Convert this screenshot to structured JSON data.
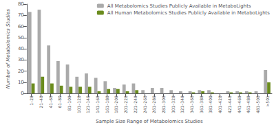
{
  "chart_data": {
    "type": "bar",
    "categories": [
      "1–20",
      "21–40",
      "41–60",
      "61–80",
      "81–100",
      "101–120",
      "121–140",
      "141–160",
      "161–180",
      "181–200",
      "201–220",
      "221–240",
      "241–260",
      "261–280",
      "281–300",
      "301–320",
      "321–340",
      "341–360",
      "361–380",
      "381–400",
      "401–420",
      "421–440",
      "441–460",
      "461–480",
      "481–500",
      ">501"
    ],
    "series": [
      {
        "name": "All Metabolomics Studies Publicly Available in MetaboLights",
        "color": "#aaaaaa",
        "values": [
          73,
          75,
          43,
          29,
          26,
          15,
          18,
          14,
          11,
          5,
          8,
          9,
          3,
          5,
          5,
          3,
          2,
          2,
          3,
          3,
          0,
          2,
          2,
          2,
          2,
          21
        ]
      },
      {
        "name": "All Human Metabolomics Studies Publicly Available in MetaboLights",
        "color": "#6b8c1e",
        "values": [
          9,
          15,
          9,
          7,
          6,
          6,
          6,
          2,
          4,
          4,
          2,
          3,
          0,
          0,
          0,
          0,
          0,
          1,
          2,
          1,
          0,
          1,
          1,
          1,
          0,
          10
        ]
      }
    ],
    "xlabel": "Sample Size Range of Metabolomics Studies",
    "ylabel": "Number of Metabolomics Studies",
    "ylim": [
      0,
      80
    ],
    "yticks": [
      0,
      10,
      20,
      30,
      40,
      50,
      60,
      70,
      80
    ],
    "legend": "upper right",
    "grid": false
  }
}
